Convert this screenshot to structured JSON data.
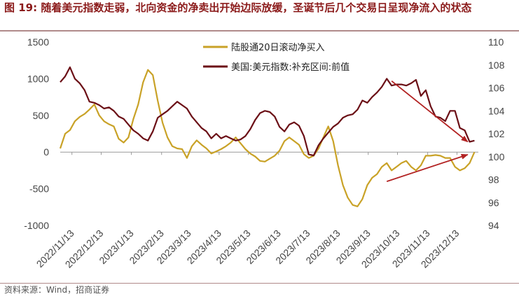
{
  "title": {
    "prefix": "图 ",
    "number": "19",
    "text": ": 随着美元指数走弱，北向资金的净卖出开始边际放缓，圣诞节后几个交易日呈现净流入的状态"
  },
  "source": "资料来源：Wind，招商证券",
  "colors": {
    "gold": "#c9a227",
    "maroon": "#6b0f16",
    "arrow": "#b22222"
  },
  "chart_data": {
    "type": "line",
    "x_ticks": [
      "2022/11/13",
      "2022/12/13",
      "2023/1/13",
      "2023/2/13",
      "2023/3/13",
      "2023/4/13",
      "2023/5/13",
      "2023/6/13",
      "2023/7/13",
      "2023/8/13",
      "2023/9/13",
      "2023/10/13",
      "2023/11/13",
      "2023/12/13"
    ],
    "y_left": {
      "min": -1000,
      "max": 1500,
      "ticks": [
        -1000,
        -500,
        0,
        500,
        1000,
        1500
      ]
    },
    "y_right": {
      "min": 94,
      "max": 110,
      "ticks": [
        94,
        96,
        98,
        100,
        102,
        104,
        106,
        108,
        110
      ]
    },
    "legend_position": "top-center",
    "grid": false,
    "series": [
      {
        "name": "陆股通20日滚动净买入",
        "axis": "left",
        "color": "#c9a227",
        "points": [
          [
            "2022/11/01",
            50
          ],
          [
            "2022/11/06",
            250
          ],
          [
            "2022/11/11",
            300
          ],
          [
            "2022/11/16",
            420
          ],
          [
            "2022/11/21",
            480
          ],
          [
            "2022/11/26",
            520
          ],
          [
            "2022/12/01",
            580
          ],
          [
            "2022/12/06",
            650
          ],
          [
            "2022/12/11",
            500
          ],
          [
            "2022/12/16",
            420
          ],
          [
            "2022/12/21",
            380
          ],
          [
            "2022/12/26",
            350
          ],
          [
            "2022/12/31",
            180
          ],
          [
            "2023/01/05",
            130
          ],
          [
            "2023/01/10",
            200
          ],
          [
            "2023/01/15",
            450
          ],
          [
            "2023/01/20",
            650
          ],
          [
            "2023/01/25",
            950
          ],
          [
            "2023/01/30",
            1120
          ],
          [
            "2023/02/04",
            1050
          ],
          [
            "2023/02/09",
            700
          ],
          [
            "2023/02/14",
            400
          ],
          [
            "2023/02/19",
            200
          ],
          [
            "2023/02/24",
            80
          ],
          [
            "2023/03/01",
            50
          ],
          [
            "2023/03/06",
            40
          ],
          [
            "2023/03/11",
            -80
          ],
          [
            "2023/03/16",
            80
          ],
          [
            "2023/03/21",
            160
          ],
          [
            "2023/03/26",
            100
          ],
          [
            "2023/03/31",
            50
          ],
          [
            "2023/04/05",
            -20
          ],
          [
            "2023/04/10",
            10
          ],
          [
            "2023/04/15",
            40
          ],
          [
            "2023/04/20",
            80
          ],
          [
            "2023/04/25",
            130
          ],
          [
            "2023/04/30",
            200
          ],
          [
            "2023/05/05",
            120
          ],
          [
            "2023/05/10",
            40
          ],
          [
            "2023/05/15",
            -20
          ],
          [
            "2023/05/20",
            -60
          ],
          [
            "2023/05/25",
            -120
          ],
          [
            "2023/05/30",
            -130
          ],
          [
            "2023/06/04",
            -90
          ],
          [
            "2023/06/09",
            -50
          ],
          [
            "2023/06/14",
            20
          ],
          [
            "2023/06/19",
            150
          ],
          [
            "2023/06/24",
            200
          ],
          [
            "2023/06/29",
            150
          ],
          [
            "2023/07/04",
            100
          ],
          [
            "2023/07/09",
            -30
          ],
          [
            "2023/07/14",
            -80
          ],
          [
            "2023/07/19",
            -50
          ],
          [
            "2023/07/24",
            50
          ],
          [
            "2023/07/29",
            200
          ],
          [
            "2023/08/03",
            350
          ],
          [
            "2023/08/08",
            150
          ],
          [
            "2023/08/13",
            -180
          ],
          [
            "2023/08/18",
            -450
          ],
          [
            "2023/08/23",
            -620
          ],
          [
            "2023/08/28",
            -720
          ],
          [
            "2023/09/02",
            -740
          ],
          [
            "2023/09/07",
            -640
          ],
          [
            "2023/09/12",
            -450
          ],
          [
            "2023/09/17",
            -350
          ],
          [
            "2023/09/22",
            -300
          ],
          [
            "2023/09/27",
            -200
          ],
          [
            "2023/10/02",
            -150
          ],
          [
            "2023/10/07",
            -250
          ],
          [
            "2023/10/12",
            -200
          ],
          [
            "2023/10/17",
            -150
          ],
          [
            "2023/10/22",
            -120
          ],
          [
            "2023/10/27",
            -200
          ],
          [
            "2023/11/01",
            -250
          ],
          [
            "2023/11/06",
            -180
          ],
          [
            "2023/11/11",
            -50
          ],
          [
            "2023/11/16",
            -50
          ],
          [
            "2023/11/21",
            -40
          ],
          [
            "2023/11/26",
            -50
          ],
          [
            "2023/12/01",
            -80
          ],
          [
            "2023/12/06",
            -80
          ],
          [
            "2023/12/11",
            -200
          ],
          [
            "2023/12/16",
            -250
          ],
          [
            "2023/12/21",
            -220
          ],
          [
            "2023/12/26",
            -150
          ],
          [
            "2023/12/31",
            0
          ]
        ]
      },
      {
        "name": "美国:美元指数:补充区间:前值",
        "axis": "right",
        "color": "#6b0f16",
        "points": [
          [
            "2022/11/01",
            106.5
          ],
          [
            "2022/11/06",
            107.0
          ],
          [
            "2022/11/11",
            107.8
          ],
          [
            "2022/11/16",
            106.8
          ],
          [
            "2022/11/21",
            106.4
          ],
          [
            "2022/11/26",
            105.8
          ],
          [
            "2022/12/01",
            104.8
          ],
          [
            "2022/12/06",
            104.7
          ],
          [
            "2022/12/11",
            104.5
          ],
          [
            "2022/12/16",
            104.2
          ],
          [
            "2022/12/21",
            104.3
          ],
          [
            "2022/12/26",
            104.0
          ],
          [
            "2022/12/31",
            103.5
          ],
          [
            "2023/01/05",
            103.3
          ],
          [
            "2023/01/10",
            102.8
          ],
          [
            "2023/01/15",
            102.3
          ],
          [
            "2023/01/20",
            102.0
          ],
          [
            "2023/01/25",
            101.6
          ],
          [
            "2023/01/30",
            101.4
          ],
          [
            "2023/02/04",
            102.2
          ],
          [
            "2023/02/09",
            103.4
          ],
          [
            "2023/02/14",
            103.7
          ],
          [
            "2023/02/19",
            104.0
          ],
          [
            "2023/02/24",
            104.4
          ],
          [
            "2023/03/01",
            104.8
          ],
          [
            "2023/03/06",
            104.5
          ],
          [
            "2023/03/11",
            104.2
          ],
          [
            "2023/03/16",
            103.5
          ],
          [
            "2023/03/21",
            103.0
          ],
          [
            "2023/03/26",
            102.5
          ],
          [
            "2023/03/31",
            102.2
          ],
          [
            "2023/04/05",
            101.6
          ],
          [
            "2023/04/10",
            102.0
          ],
          [
            "2023/04/15",
            101.6
          ],
          [
            "2023/04/20",
            101.8
          ],
          [
            "2023/04/25",
            101.6
          ],
          [
            "2023/04/30",
            101.4
          ],
          [
            "2023/05/05",
            101.5
          ],
          [
            "2023/05/10",
            101.8
          ],
          [
            "2023/05/15",
            102.4
          ],
          [
            "2023/05/20",
            103.2
          ],
          [
            "2023/05/25",
            103.8
          ],
          [
            "2023/05/30",
            104.0
          ],
          [
            "2023/06/04",
            103.9
          ],
          [
            "2023/06/09",
            103.5
          ],
          [
            "2023/06/14",
            102.6
          ],
          [
            "2023/06/19",
            102.2
          ],
          [
            "2023/06/24",
            102.8
          ],
          [
            "2023/06/29",
            103.0
          ],
          [
            "2023/07/04",
            102.7
          ],
          [
            "2023/07/09",
            101.8
          ],
          [
            "2023/07/14",
            100.2
          ],
          [
            "2023/07/19",
            100.1
          ],
          [
            "2023/07/24",
            101.0
          ],
          [
            "2023/07/29",
            101.6
          ],
          [
            "2023/08/03",
            102.1
          ],
          [
            "2023/08/08",
            102.6
          ],
          [
            "2023/08/13",
            102.9
          ],
          [
            "2023/08/18",
            103.4
          ],
          [
            "2023/08/23",
            103.6
          ],
          [
            "2023/08/28",
            103.7
          ],
          [
            "2023/09/02",
            104.1
          ],
          [
            "2023/09/07",
            104.9
          ],
          [
            "2023/09/12",
            104.7
          ],
          [
            "2023/09/17",
            105.2
          ],
          [
            "2023/09/22",
            105.6
          ],
          [
            "2023/09/27",
            106.1
          ],
          [
            "2023/10/02",
            106.8
          ],
          [
            "2023/10/07",
            106.2
          ],
          [
            "2023/10/12",
            106.3
          ],
          [
            "2023/10/17",
            106.3
          ],
          [
            "2023/10/22",
            106.2
          ],
          [
            "2023/10/27",
            106.4
          ],
          [
            "2023/11/01",
            106.7
          ],
          [
            "2023/11/06",
            105.3
          ],
          [
            "2023/11/11",
            105.8
          ],
          [
            "2023/11/16",
            104.4
          ],
          [
            "2023/11/21",
            103.5
          ],
          [
            "2023/11/26",
            103.4
          ],
          [
            "2023/12/01",
            103.1
          ],
          [
            "2023/12/06",
            104.0
          ],
          [
            "2023/12/11",
            104.0
          ],
          [
            "2023/12/16",
            102.5
          ],
          [
            "2023/12/21",
            102.3
          ],
          [
            "2023/12/26",
            101.3
          ],
          [
            "2023/12/31",
            101.4
          ]
        ]
      }
    ]
  }
}
